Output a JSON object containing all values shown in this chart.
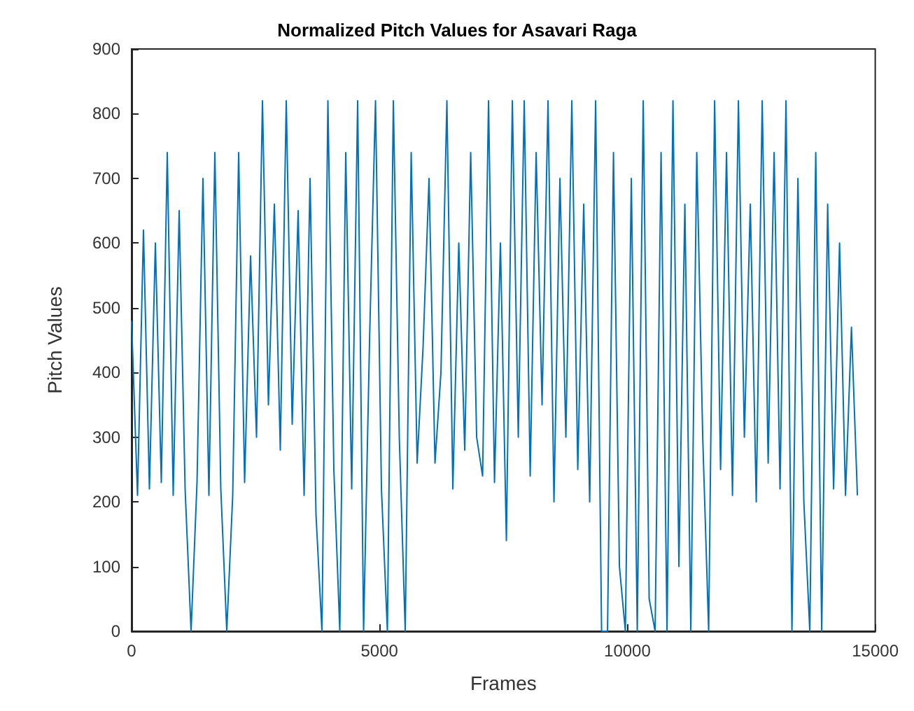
{
  "chart_data": {
    "type": "line",
    "title": "Normalized Pitch Values for Asavari Raga",
    "xlabel": "Frames",
    "ylabel": "Pitch Values",
    "x": [
      0,
      120,
      240,
      360,
      480,
      600,
      720,
      840,
      960,
      1080,
      1200,
      1320,
      1440,
      1560,
      1680,
      1800,
      1920,
      2040,
      2160,
      2280,
      2400,
      2520,
      2640,
      2760,
      2880,
      3000,
      3120,
      3240,
      3360,
      3480,
      3600,
      3720,
      3840,
      3960,
      4080,
      4200,
      4320,
      4440,
      4560,
      4680,
      4800,
      4920,
      5040,
      5160,
      5280,
      5400,
      5520,
      5640,
      5760,
      5880,
      6000,
      6120,
      6240,
      6360,
      6480,
      6600,
      6720,
      6840,
      6960,
      7080,
      7200,
      7320,
      7440,
      7560,
      7680,
      7800,
      7920,
      8040,
      8160,
      8280,
      8400,
      8520,
      8640,
      8760,
      8880,
      9000,
      9120,
      9240,
      9360,
      9480,
      9600,
      9720,
      9840,
      9960,
      10080,
      10200,
      10320,
      10440,
      10560,
      10680,
      10800,
      10920,
      11040,
      11160,
      11280,
      11400,
      11520,
      11640,
      11760,
      11880,
      12000,
      12120,
      12240,
      12360,
      12480,
      12600,
      12720,
      12840,
      12960,
      13080,
      13200,
      13320,
      13440,
      13560,
      13680,
      13800,
      13920,
      14040,
      14160,
      14280,
      14400,
      14520,
      14640
    ],
    "series": [
      {
        "color": "#0072bd",
        "values": [
          480,
          210,
          620,
          220,
          600,
          230,
          740,
          210,
          650,
          220,
          0,
          230,
          700,
          210,
          740,
          220,
          0,
          210,
          740,
          230,
          580,
          300,
          820,
          350,
          660,
          280,
          820,
          320,
          650,
          210,
          700,
          180,
          0,
          820,
          250,
          0,
          740,
          220,
          820,
          0,
          450,
          820,
          220,
          0,
          820,
          300,
          0,
          740,
          260,
          440,
          700,
          260,
          400,
          820,
          220,
          600,
          280,
          740,
          300,
          240,
          820,
          230,
          600,
          140,
          820,
          300,
          820,
          240,
          740,
          350,
          820,
          200,
          700,
          300,
          820,
          250,
          660,
          200,
          820,
          0,
          0,
          740,
          100,
          0,
          700,
          0,
          820,
          50,
          0,
          740,
          0,
          820,
          100,
          660,
          0,
          740,
          300,
          0,
          820,
          250,
          740,
          210,
          820,
          300,
          660,
          200,
          820,
          260,
          740,
          220,
          820,
          0,
          700,
          200,
          0,
          740,
          0,
          660,
          220,
          600,
          210,
          470,
          210
        ]
      }
    ],
    "xlim": [
      0,
      15000
    ],
    "xticks": [
      0,
      5000,
      10000,
      15000
    ],
    "ylim": [
      0,
      900
    ],
    "yticks": [
      0,
      100,
      200,
      300,
      400,
      500,
      600,
      700,
      800,
      900
    ],
    "grid": false,
    "marker": "none",
    "line_style": "solid"
  }
}
